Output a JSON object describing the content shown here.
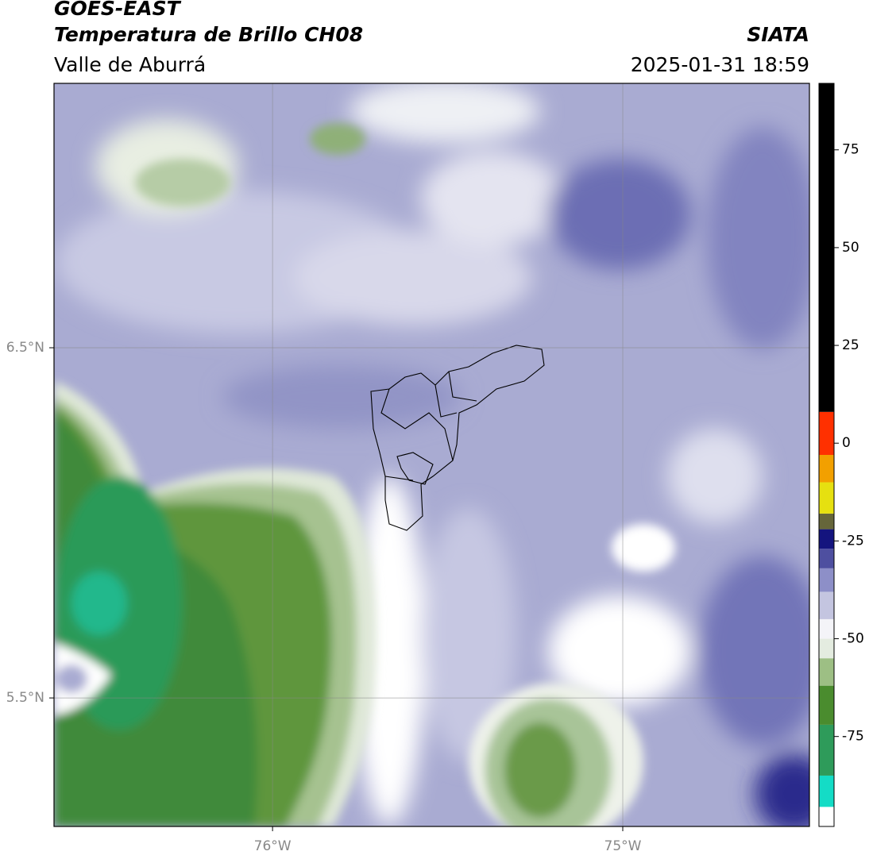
{
  "header": {
    "title": "GOES-EAST",
    "product": "Temperatura de Brillo CH08",
    "region": "Valle de Aburrá",
    "source": "SIATA",
    "timestamp": "2025-01-31 18:59"
  },
  "map": {
    "lonlim": [
      -76.624,
      -74.467
    ],
    "latlim": [
      5.133,
      7.255
    ],
    "lonticks": [
      {
        "value": -76,
        "label": "76°W"
      },
      {
        "value": -75,
        "label": "75°W"
      }
    ],
    "latticks": [
      {
        "value": 6.5,
        "label": "6.5°N"
      },
      {
        "value": 5.5,
        "label": "5.5°N"
      }
    ],
    "grid": true
  },
  "colorbar": {
    "range": [
      -98,
      92
    ],
    "ticks": [
      75,
      50,
      25,
      0,
      -25,
      -50,
      -75
    ],
    "segments": [
      {
        "from": -98,
        "to": -93,
        "color": "#ffffff"
      },
      {
        "from": -93,
        "to": -85,
        "color": "#14dcc6"
      },
      {
        "from": -85,
        "to": -72,
        "color": "#2e9b5a"
      },
      {
        "from": -72,
        "to": -62,
        "color": "#4a8c2e"
      },
      {
        "from": -62,
        "to": -55,
        "color": "#9dbf84"
      },
      {
        "from": -55,
        "to": -50,
        "color": "#e4ece0"
      },
      {
        "from": -50,
        "to": -45,
        "color": "#f4f4f8"
      },
      {
        "from": -45,
        "to": -38,
        "color": "#c4c5e0"
      },
      {
        "from": -38,
        "to": -32,
        "color": "#8d8fc8"
      },
      {
        "from": -32,
        "to": -27,
        "color": "#4e4fa0"
      },
      {
        "from": -27,
        "to": -22,
        "color": "#14147e"
      },
      {
        "from": -22,
        "to": -18,
        "color": "#66663a"
      },
      {
        "from": -18,
        "to": -10,
        "color": "#e6e010"
      },
      {
        "from": -10,
        "to": -3,
        "color": "#f2a000"
      },
      {
        "from": -3,
        "to": 8,
        "color": "#ff3000"
      },
      {
        "from": 8,
        "to": 92,
        "color": "#000000"
      }
    ]
  }
}
